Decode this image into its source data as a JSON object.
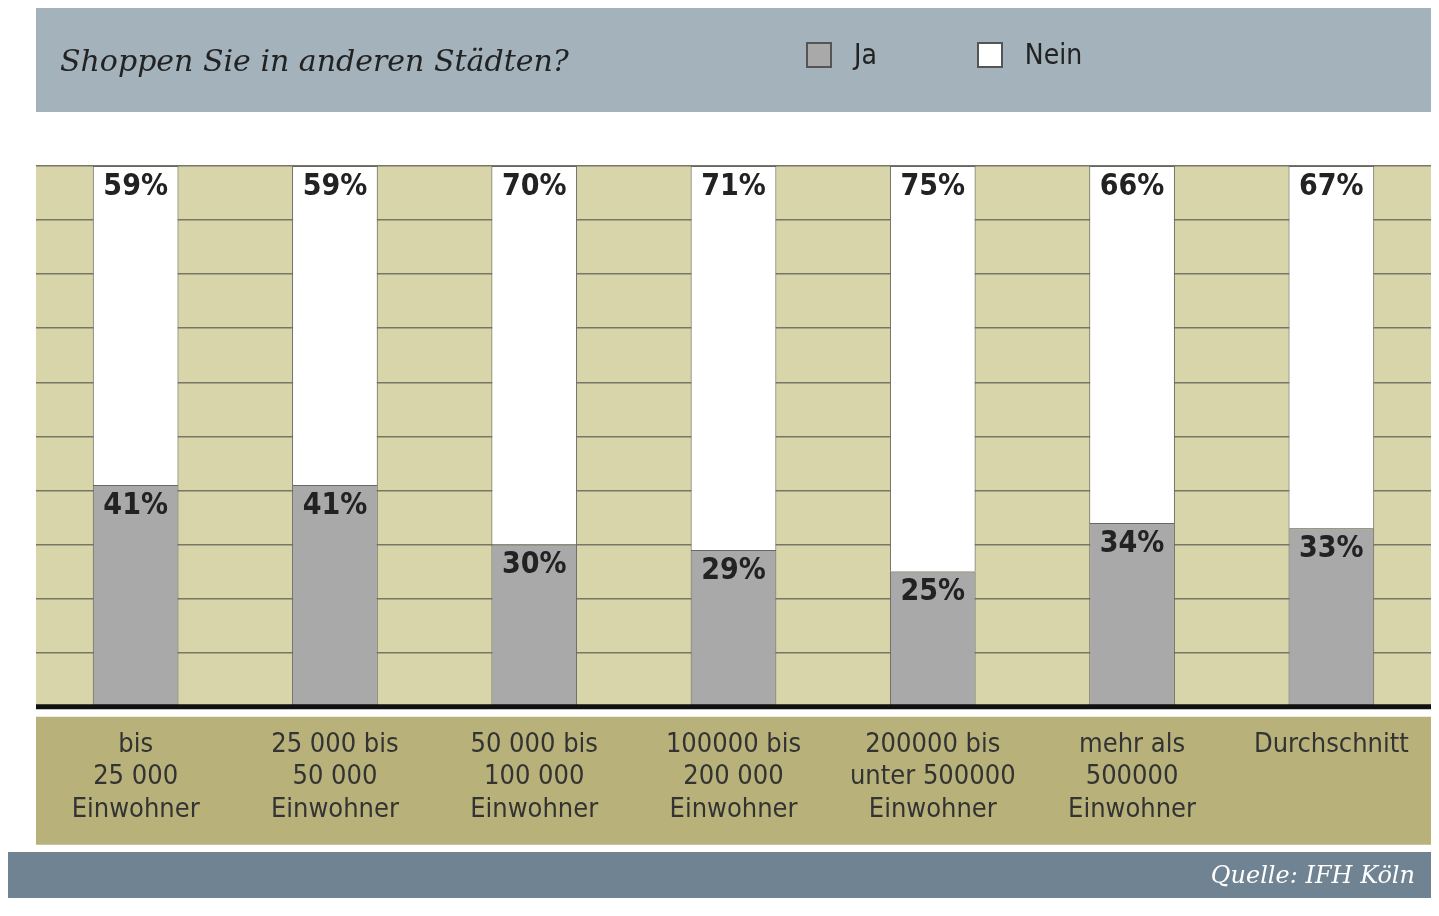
{
  "chart_data": {
    "type": "bar",
    "title": "Shoppen Sie in anderen Städten?",
    "categories": [
      "bis\n25 000\nEinwohner",
      "25 000 bis\n50 000\nEinwohner",
      "50 000 bis\n100 000\nEinwohner",
      "100000 bis\n200 000\nEinwohner",
      "200000 bis\nunter 500000\nEinwohner",
      "mehr als\n500000\nEinwohner",
      "Durchschnitt"
    ],
    "series": [
      {
        "name": "Ja",
        "color": "#a9a9a9",
        "values": [
          41,
          41,
          30,
          29,
          25,
          34,
          33
        ],
        "value_labels": [
          "41%",
          "41%",
          "30%",
          "29%",
          "25%",
          "34%",
          "33%"
        ]
      },
      {
        "name": "Nein",
        "color": "#ffffff",
        "values": [
          59,
          59,
          70,
          71,
          75,
          66,
          67
        ],
        "value_labels": [
          "59%",
          "59%",
          "70%",
          "71%",
          "75%",
          "66%",
          "67%"
        ]
      }
    ],
    "stacked": true,
    "grid": "y",
    "tick_labels": "x",
    "legend": "top",
    "annotations": [
      "Quelle: IFH Köln"
    ]
  }
}
